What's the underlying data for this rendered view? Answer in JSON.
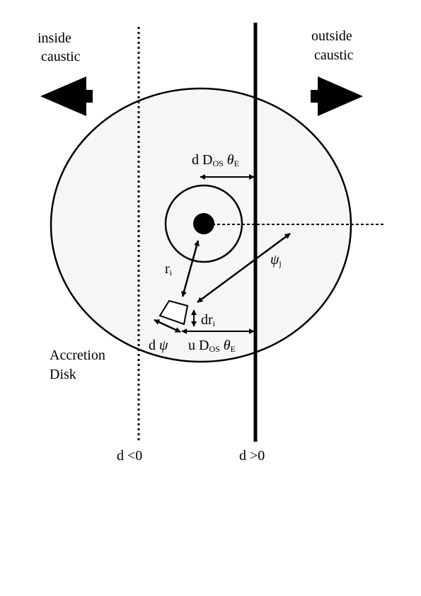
{
  "labels": {
    "inside_line1": "inside",
    "inside_line2": "caustic",
    "outside_line1": "outside",
    "outside_line2": "caustic",
    "d_dos_theta_e": {
      "d": "d",
      "D": "D",
      "os": "OS",
      "theta": "θ",
      "e": "E"
    },
    "r_i": {
      "r": "r",
      "i": "i"
    },
    "psi_j": {
      "psi": "ψ",
      "j": "j"
    },
    "dr_i": {
      "dr": "dr",
      "i": "i"
    },
    "d_psi": {
      "d": "d",
      "psi": "ψ"
    },
    "u_dos_theta_e": {
      "u": "u",
      "D": "D",
      "os": "OS",
      "theta": "θ",
      "e": "E"
    },
    "accretion_line1": "Accretion",
    "accretion_line2": "Disk",
    "d_negative": "d <0",
    "d_positive": "d >0"
  },
  "colors": {
    "disk_fill": "#f6f6f6",
    "ink": "#000000"
  }
}
